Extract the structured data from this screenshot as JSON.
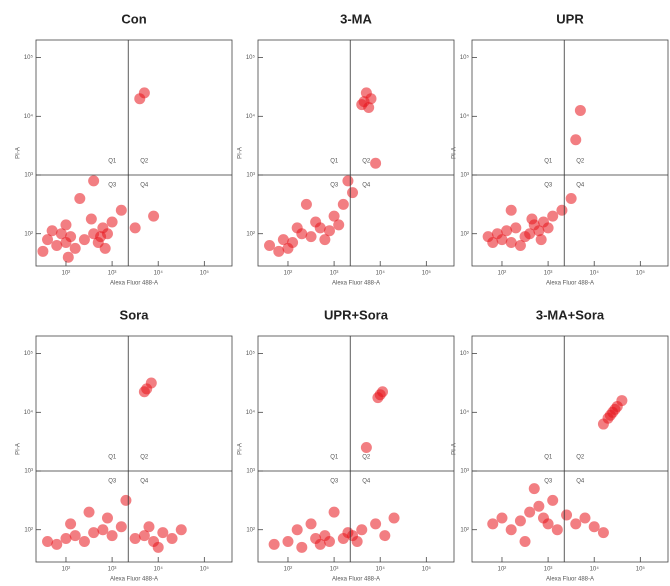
{
  "chart_data": [
    {
      "type": "scatter",
      "title": "Con",
      "x_label": "Alexa Fluor 488-A",
      "y_label": "PI-A",
      "quadrants": [
        "Q1",
        "Q2",
        "Q3",
        "Q4"
      ],
      "color": "#e8141c",
      "xlim": [
        1.35,
        5.6
      ],
      "ylim": [
        1.45,
        5.3
      ],
      "x_gate": 3.35,
      "y_gate": 3.0,
      "xticks": [
        {
          "value": 2,
          "label": "10²"
        },
        {
          "value": 3,
          "label": "10³"
        },
        {
          "value": 4,
          "label": "10⁴"
        },
        {
          "value": 5,
          "label": "10⁵"
        }
      ],
      "yticks": [
        {
          "value": 2,
          "label": "10²"
        },
        {
          "value": 3,
          "label": "10³"
        },
        {
          "value": 4,
          "label": "10⁴"
        },
        {
          "value": 5,
          "label": "10⁵"
        }
      ],
      "x": [
        1.6,
        1.8,
        1.9,
        2.0,
        2.1,
        2.2,
        1.7,
        2.0,
        2.4,
        2.6,
        2.7,
        2.8,
        2.9,
        3.0,
        2.75,
        2.55,
        3.2,
        3.5,
        3.9,
        2.3,
        1.5,
        2.05,
        2.85,
        3.6,
        3.7,
        2.6
      ],
      "values": [
        1.9,
        1.8,
        2.0,
        1.85,
        1.95,
        1.75,
        2.05,
        2.15,
        1.9,
        2.0,
        1.85,
        2.1,
        2.0,
        2.2,
        1.95,
        2.25,
        2.4,
        2.1,
        2.3,
        2.6,
        1.7,
        1.6,
        1.75,
        4.3,
        4.4,
        2.9
      ]
    },
    {
      "type": "scatter",
      "title": "3-MA",
      "x_label": "Alexa Fluor 488-A",
      "y_label": "PI-A",
      "quadrants": [
        "Q1",
        "Q2",
        "Q3",
        "Q4"
      ],
      "color": "#e8141c",
      "xlim": [
        1.35,
        5.6
      ],
      "ylim": [
        1.45,
        5.3
      ],
      "x_gate": 3.35,
      "y_gate": 3.0,
      "xticks": [
        {
          "value": 2,
          "label": "10²"
        },
        {
          "value": 3,
          "label": "10³"
        },
        {
          "value": 4,
          "label": "10⁴"
        },
        {
          "value": 5,
          "label": "10⁵"
        }
      ],
      "yticks": [
        {
          "value": 2,
          "label": "10²"
        },
        {
          "value": 3,
          "label": "10³"
        },
        {
          "value": 4,
          "label": "10⁴"
        },
        {
          "value": 5,
          "label": "10⁵"
        }
      ],
      "x": [
        1.6,
        1.9,
        2.1,
        2.3,
        2.0,
        2.5,
        2.7,
        2.9,
        3.0,
        3.2,
        2.8,
        3.4,
        2.2,
        1.8,
        2.6,
        3.1,
        3.6,
        3.8,
        3.7,
        3.75,
        3.65,
        3.9,
        2.4,
        3.3
      ],
      "values": [
        1.8,
        1.9,
        1.85,
        2.0,
        1.75,
        1.95,
        2.1,
        2.05,
        2.3,
        2.5,
        1.9,
        2.7,
        2.1,
        1.7,
        2.2,
        2.15,
        4.2,
        4.3,
        4.4,
        4.15,
        4.25,
        3.2,
        2.5,
        2.9
      ]
    },
    {
      "type": "scatter",
      "title": "UPR",
      "x_label": "Alexa Fluor 488-A",
      "y_label": "PI-A",
      "quadrants": [
        "Q1",
        "Q2",
        "Q3",
        "Q4"
      ],
      "color": "#e8141c",
      "xlim": [
        1.35,
        5.6
      ],
      "ylim": [
        1.45,
        5.3
      ],
      "x_gate": 3.35,
      "y_gate": 3.0,
      "xticks": [
        {
          "value": 2,
          "label": "10²"
        },
        {
          "value": 3,
          "label": "10³"
        },
        {
          "value": 4,
          "label": "10⁴"
        },
        {
          "value": 5,
          "label": "10⁵"
        }
      ],
      "yticks": [
        {
          "value": 2,
          "label": "10²"
        },
        {
          "value": 3,
          "label": "10³"
        },
        {
          "value": 4,
          "label": "10⁴"
        },
        {
          "value": 5,
          "label": "10⁵"
        }
      ],
      "x": [
        1.7,
        1.9,
        2.0,
        2.1,
        2.2,
        2.3,
        2.5,
        2.6,
        2.7,
        2.8,
        2.9,
        3.0,
        3.1,
        3.3,
        2.4,
        1.8,
        2.65,
        2.85,
        3.5,
        3.7,
        3.6,
        2.2
      ],
      "values": [
        1.95,
        2.0,
        1.9,
        2.05,
        1.85,
        2.1,
        1.95,
        2.0,
        2.15,
        2.05,
        2.2,
        2.1,
        2.3,
        2.4,
        1.8,
        1.85,
        2.25,
        1.9,
        2.6,
        4.1,
        3.6,
        2.4
      ]
    },
    {
      "type": "scatter",
      "title": "Sora",
      "x_label": "Alexa Fluor 488-A",
      "y_label": "PI-A",
      "quadrants": [
        "Q1",
        "Q2",
        "Q3",
        "Q4"
      ],
      "color": "#e8141c",
      "xlim": [
        1.35,
        5.6
      ],
      "ylim": [
        1.45,
        5.3
      ],
      "x_gate": 3.35,
      "y_gate": 3.0,
      "xticks": [
        {
          "value": 2,
          "label": "10²"
        },
        {
          "value": 3,
          "label": "10³"
        },
        {
          "value": 4,
          "label": "10⁴"
        },
        {
          "value": 5,
          "label": "10⁵"
        }
      ],
      "yticks": [
        {
          "value": 2,
          "label": "10²"
        },
        {
          "value": 3,
          "label": "10³"
        },
        {
          "value": 4,
          "label": "10⁴"
        },
        {
          "value": 5,
          "label": "10⁵"
        }
      ],
      "x": [
        1.6,
        1.8,
        2.0,
        2.2,
        2.4,
        2.6,
        2.8,
        3.0,
        3.2,
        3.5,
        3.7,
        3.9,
        4.1,
        4.3,
        3.8,
        2.9,
        2.1,
        4.0,
        3.75,
        3.85,
        3.7,
        4.5,
        2.5,
        3.3
      ],
      "values": [
        1.8,
        1.75,
        1.85,
        1.9,
        1.8,
        1.95,
        2.0,
        1.9,
        2.05,
        1.85,
        1.9,
        1.8,
        1.95,
        1.85,
        2.05,
        2.2,
        2.1,
        1.7,
        4.4,
        4.5,
        4.35,
        2.0,
        2.3,
        2.5
      ]
    },
    {
      "type": "scatter",
      "title": "UPR+Sora",
      "x_label": "Alexa Fluor 488-A",
      "y_label": "PI-A",
      "quadrants": [
        "Q1",
        "Q2",
        "Q3",
        "Q4"
      ],
      "color": "#e8141c",
      "xlim": [
        1.35,
        5.6
      ],
      "ylim": [
        1.45,
        5.3
      ],
      "x_gate": 3.35,
      "y_gate": 3.0,
      "xticks": [
        {
          "value": 2,
          "label": "10²"
        },
        {
          "value": 3,
          "label": "10³"
        },
        {
          "value": 4,
          "label": "10⁴"
        },
        {
          "value": 5,
          "label": "10⁵"
        }
      ],
      "yticks": [
        {
          "value": 2,
          "label": "10²"
        },
        {
          "value": 3,
          "label": "10³"
        },
        {
          "value": 4,
          "label": "10⁴"
        },
        {
          "value": 5,
          "label": "10⁵"
        }
      ],
      "x": [
        1.7,
        2.0,
        2.3,
        2.6,
        2.7,
        2.8,
        2.9,
        3.2,
        3.3,
        3.4,
        3.5,
        3.6,
        3.9,
        4.1,
        4.0,
        4.05,
        3.95,
        2.5,
        3.0,
        3.7,
        4.3,
        2.2
      ],
      "values": [
        1.75,
        1.8,
        1.7,
        1.85,
        1.75,
        1.9,
        1.8,
        1.85,
        1.95,
        1.9,
        1.8,
        2.0,
        2.1,
        1.9,
        4.3,
        4.35,
        4.25,
        2.1,
        2.3,
        3.4,
        2.2,
        2.0
      ]
    },
    {
      "type": "scatter",
      "title": "3-MA+Sora",
      "x_label": "Alexa Fluor 488-A",
      "y_label": "PI-A",
      "quadrants": [
        "Q1",
        "Q2",
        "Q3",
        "Q4"
      ],
      "color": "#e8141c",
      "xlim": [
        1.35,
        5.6
      ],
      "ylim": [
        1.45,
        5.3
      ],
      "x_gate": 3.35,
      "y_gate": 3.0,
      "xticks": [
        {
          "value": 2,
          "label": "10²"
        },
        {
          "value": 3,
          "label": "10³"
        },
        {
          "value": 4,
          "label": "10⁴"
        },
        {
          "value": 5,
          "label": "10⁵"
        }
      ],
      "yticks": [
        {
          "value": 2,
          "label": "10²"
        },
        {
          "value": 3,
          "label": "10³"
        },
        {
          "value": 4,
          "label": "10⁴"
        },
        {
          "value": 5,
          "label": "10⁵"
        }
      ],
      "x": [
        1.8,
        2.0,
        2.2,
        2.4,
        2.6,
        2.8,
        2.9,
        3.0,
        3.2,
        3.4,
        3.6,
        3.8,
        4.0,
        4.2,
        2.7,
        3.1,
        4.2,
        4.3,
        4.4,
        4.5,
        4.6,
        4.35,
        4.45,
        2.5
      ],
      "values": [
        2.1,
        2.2,
        2.0,
        2.15,
        2.3,
        2.4,
        2.2,
        2.1,
        2.0,
        2.25,
        2.1,
        2.2,
        2.05,
        1.95,
        2.7,
        2.5,
        3.8,
        3.9,
        4.0,
        4.1,
        4.2,
        3.95,
        4.05,
        1.8
      ]
    }
  ]
}
